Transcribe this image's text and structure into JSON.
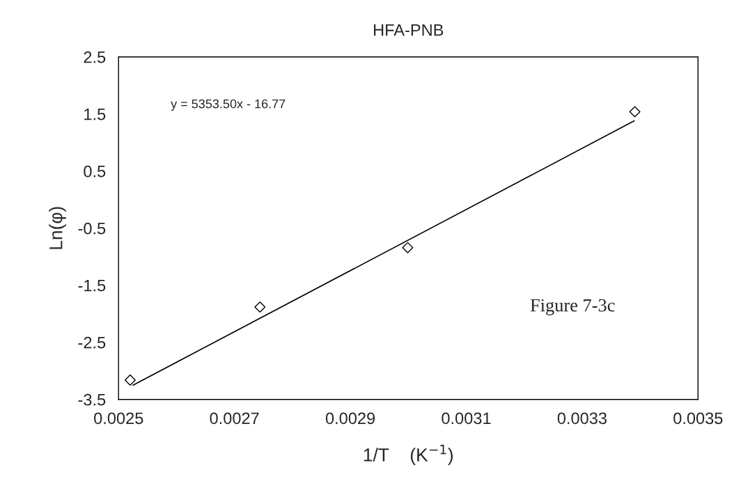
{
  "chart_data": {
    "type": "scatter",
    "title": "HFA-PNB",
    "xlabel": "1/T    (K$^{−1}$)",
    "ylabel": "Ln(φ)",
    "xlim": [
      0.0025,
      0.0035
    ],
    "xticks": [
      0.0025,
      0.0027,
      0.0029,
      0.0031,
      0.0033,
      0.0035
    ],
    "ylim": [
      -3.5,
      2.5
    ],
    "yticks": [
      -3.5,
      -2.5,
      -1.5,
      -0.5,
      0.5,
      1.5,
      2.5
    ],
    "marker": "diamond",
    "grid": false,
    "legend": false,
    "series": [
      {
        "color": "#000000",
        "x": [
          0.00252,
          0.002744,
          0.002999,
          0.003391
        ],
        "values": [
          -3.16,
          -1.88,
          -0.84,
          1.54
        ]
      },
      {
        "type": "line",
        "marker": "none",
        "color": "#000000",
        "x": [
          0.002525,
          0.00339
        ],
        "values": [
          -3.25,
          1.38
        ]
      }
    ],
    "annotations": [
      "y = 5353.50x - 16.77",
      "Figure 7-3c"
    ]
  }
}
